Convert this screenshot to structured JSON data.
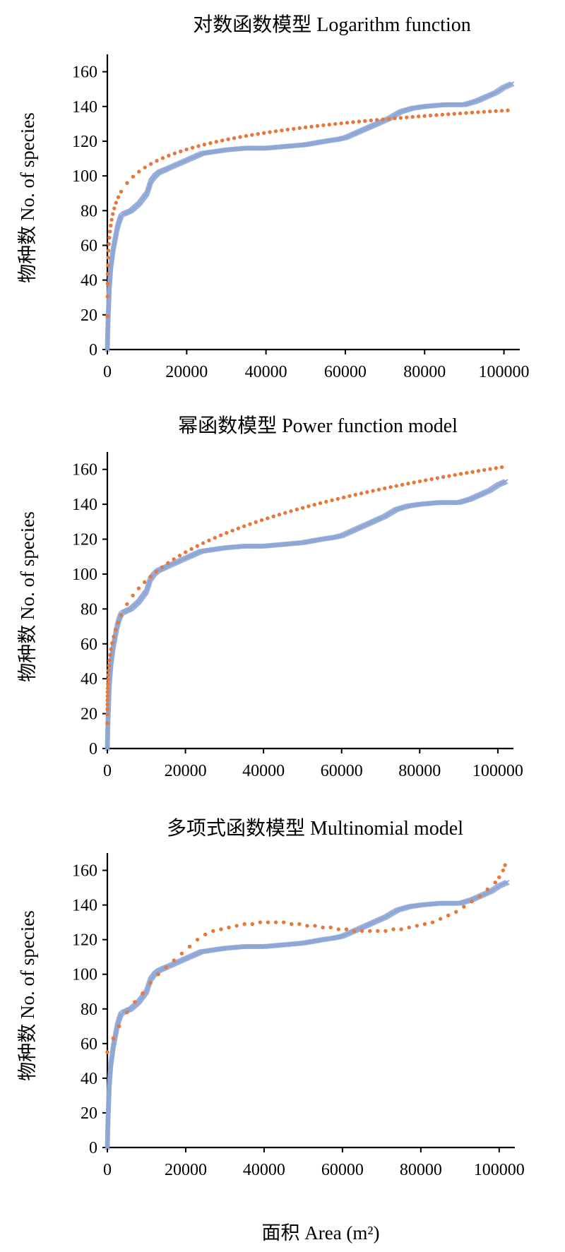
{
  "colors": {
    "observed": "#8fa7d6",
    "fitted": "#e8773a",
    "axis": "#000000"
  },
  "xlabel_shared": "面积 Area (m²)",
  "chart_data": [
    {
      "type": "scatter",
      "title": "对数函数模型 Logarithm function",
      "ylabel": "物种数 No. of species",
      "xlim": [
        0,
        104000
      ],
      "ylim": [
        0,
        170
      ],
      "xticks": [
        0,
        20000,
        40000,
        60000,
        80000,
        100000
      ],
      "yticks": [
        0,
        20,
        40,
        60,
        80,
        100,
        120,
        140,
        160
      ],
      "series": [
        {
          "marker": "x",
          "points": [
            [
              0,
              0
            ],
            [
              50,
              5
            ],
            [
              100,
              10
            ],
            [
              200,
              18
            ],
            [
              300,
              24
            ],
            [
              400,
              30
            ],
            [
              500,
              36
            ],
            [
              700,
              42
            ],
            [
              900,
              48
            ],
            [
              1200,
              53
            ],
            [
              1500,
              58
            ],
            [
              2000,
              64
            ],
            [
              2500,
              70
            ],
            [
              3000,
              74
            ],
            [
              3500,
              77
            ],
            [
              4000,
              78
            ],
            [
              5000,
              79
            ],
            [
              6000,
              80
            ],
            [
              7000,
              82
            ],
            [
              8000,
              84
            ],
            [
              9000,
              87
            ],
            [
              10000,
              90
            ],
            [
              11000,
              97
            ],
            [
              12000,
              100
            ],
            [
              13000,
              102
            ],
            [
              14000,
              103
            ],
            [
              15000,
              104
            ],
            [
              17000,
              106
            ],
            [
              19000,
              108
            ],
            [
              21000,
              110
            ],
            [
              24000,
              113
            ],
            [
              27000,
              114
            ],
            [
              30000,
              115
            ],
            [
              35000,
              116
            ],
            [
              40000,
              116
            ],
            [
              45000,
              117
            ],
            [
              50000,
              118
            ],
            [
              55000,
              120
            ],
            [
              58000,
              121
            ],
            [
              60000,
              122
            ],
            [
              62000,
              124
            ],
            [
              65000,
              127
            ],
            [
              68000,
              130
            ],
            [
              71000,
              133
            ],
            [
              74000,
              137
            ],
            [
              77000,
              139
            ],
            [
              80000,
              140
            ],
            [
              85000,
              141
            ],
            [
              90000,
              141
            ],
            [
              93000,
              143
            ],
            [
              96000,
              146
            ],
            [
              98000,
              148
            ],
            [
              100000,
              151
            ],
            [
              102000,
              153
            ]
          ]
        },
        {
          "marker": "dot",
          "model": "logarithm",
          "a": 13.9,
          "b": -22.4,
          "points": []
        }
      ]
    },
    {
      "type": "scatter",
      "title": "幂函数模型 Power function model",
      "ylabel": "物种数 No. of species",
      "xlim": [
        0,
        104000
      ],
      "ylim": [
        0,
        170
      ],
      "xticks": [
        0,
        20000,
        40000,
        60000,
        80000,
        100000
      ],
      "yticks": [
        0,
        20,
        40,
        60,
        80,
        100,
        120,
        140,
        160
      ],
      "series": [
        {
          "marker": "x",
          "points": [
            [
              0,
              0
            ],
            [
              50,
              5
            ],
            [
              100,
              10
            ],
            [
              200,
              18
            ],
            [
              300,
              24
            ],
            [
              400,
              30
            ],
            [
              500,
              36
            ],
            [
              700,
              42
            ],
            [
              900,
              48
            ],
            [
              1200,
              53
            ],
            [
              1500,
              58
            ],
            [
              2000,
              64
            ],
            [
              2500,
              70
            ],
            [
              3000,
              74
            ],
            [
              3500,
              77
            ],
            [
              4000,
              78
            ],
            [
              5000,
              79
            ],
            [
              6000,
              80
            ],
            [
              7000,
              82
            ],
            [
              8000,
              84
            ],
            [
              9000,
              87
            ],
            [
              10000,
              90
            ],
            [
              11000,
              97
            ],
            [
              12000,
              100
            ],
            [
              13000,
              102
            ],
            [
              14000,
              103
            ],
            [
              15000,
              104
            ],
            [
              17000,
              106
            ],
            [
              19000,
              108
            ],
            [
              21000,
              110
            ],
            [
              24000,
              113
            ],
            [
              27000,
              114
            ],
            [
              30000,
              115
            ],
            [
              35000,
              116
            ],
            [
              40000,
              116
            ],
            [
              45000,
              117
            ],
            [
              50000,
              118
            ],
            [
              55000,
              120
            ],
            [
              58000,
              121
            ],
            [
              60000,
              122
            ],
            [
              62000,
              124
            ],
            [
              65000,
              127
            ],
            [
              68000,
              130
            ],
            [
              71000,
              133
            ],
            [
              74000,
              137
            ],
            [
              77000,
              139
            ],
            [
              80000,
              140
            ],
            [
              85000,
              141
            ],
            [
              90000,
              141
            ],
            [
              93000,
              143
            ],
            [
              96000,
              146
            ],
            [
              98000,
              148
            ],
            [
              100000,
              151
            ],
            [
              102000,
              153
            ]
          ]
        },
        {
          "marker": "dot",
          "model": "power",
          "c": 12.42,
          "z": 0.2225,
          "points": []
        }
      ]
    },
    {
      "type": "scatter",
      "title": "多项式函数模型 Multinomial model",
      "ylabel": "物种数 No. of species",
      "xlim": [
        0,
        104000
      ],
      "ylim": [
        0,
        170
      ],
      "xticks": [
        0,
        20000,
        40000,
        60000,
        80000,
        100000
      ],
      "yticks": [
        0,
        20,
        40,
        60,
        80,
        100,
        120,
        140,
        160
      ],
      "series": [
        {
          "marker": "x",
          "points": [
            [
              0,
              0
            ],
            [
              50,
              5
            ],
            [
              100,
              10
            ],
            [
              200,
              18
            ],
            [
              300,
              24
            ],
            [
              400,
              30
            ],
            [
              500,
              36
            ],
            [
              700,
              42
            ],
            [
              900,
              48
            ],
            [
              1200,
              53
            ],
            [
              1500,
              58
            ],
            [
              2000,
              64
            ],
            [
              2500,
              70
            ],
            [
              3000,
              74
            ],
            [
              3500,
              77
            ],
            [
              4000,
              78
            ],
            [
              5000,
              79
            ],
            [
              6000,
              80
            ],
            [
              7000,
              82
            ],
            [
              8000,
              84
            ],
            [
              9000,
              87
            ],
            [
              10000,
              90
            ],
            [
              11000,
              97
            ],
            [
              12000,
              100
            ],
            [
              13000,
              102
            ],
            [
              14000,
              103
            ],
            [
              15000,
              104
            ],
            [
              17000,
              106
            ],
            [
              19000,
              108
            ],
            [
              21000,
              110
            ],
            [
              24000,
              113
            ],
            [
              27000,
              114
            ],
            [
              30000,
              115
            ],
            [
              35000,
              116
            ],
            [
              40000,
              116
            ],
            [
              45000,
              117
            ],
            [
              50000,
              118
            ],
            [
              55000,
              120
            ],
            [
              58000,
              121
            ],
            [
              60000,
              122
            ],
            [
              62000,
              124
            ],
            [
              65000,
              127
            ],
            [
              68000,
              130
            ],
            [
              71000,
              133
            ],
            [
              74000,
              137
            ],
            [
              77000,
              139
            ],
            [
              80000,
              140
            ],
            [
              85000,
              141
            ],
            [
              90000,
              141
            ],
            [
              93000,
              143
            ],
            [
              96000,
              146
            ],
            [
              98000,
              148
            ],
            [
              100000,
              151
            ],
            [
              102000,
              153
            ]
          ]
        },
        {
          "marker": "dot",
          "model": "polynomial",
          "points": [
            [
              0,
              55
            ],
            [
              1500,
              63
            ],
            [
              3000,
              70
            ],
            [
              5000,
              78
            ],
            [
              7000,
              84
            ],
            [
              9000,
              89
            ],
            [
              11000,
              95
            ],
            [
              13000,
              100
            ],
            [
              15000,
              104
            ],
            [
              17000,
              108
            ],
            [
              19000,
              112
            ],
            [
              21000,
              116
            ],
            [
              23000,
              120
            ],
            [
              25000,
              123
            ],
            [
              27000,
              125
            ],
            [
              29000,
              126
            ],
            [
              31000,
              127
            ],
            [
              33000,
              128
            ],
            [
              35000,
              129
            ],
            [
              37000,
              129
            ],
            [
              39000,
              130
            ],
            [
              41000,
              130
            ],
            [
              43000,
              130
            ],
            [
              45000,
              130
            ],
            [
              47000,
              129
            ],
            [
              49000,
              129
            ],
            [
              51000,
              128
            ],
            [
              53000,
              128
            ],
            [
              55000,
              127
            ],
            [
              57000,
              127
            ],
            [
              59000,
              126
            ],
            [
              61000,
              126
            ],
            [
              63000,
              125
            ],
            [
              65000,
              125
            ],
            [
              67000,
              125
            ],
            [
              69000,
              125
            ],
            [
              71000,
              125
            ],
            [
              73000,
              126
            ],
            [
              75000,
              126
            ],
            [
              77000,
              127
            ],
            [
              79000,
              128
            ],
            [
              81000,
              129
            ],
            [
              83000,
              130
            ],
            [
              85000,
              132
            ],
            [
              87000,
              134
            ],
            [
              89000,
              136
            ],
            [
              91000,
              139
            ],
            [
              93000,
              142
            ],
            [
              95000,
              145
            ],
            [
              97000,
              149
            ],
            [
              99000,
              153
            ],
            [
              100000,
              156
            ],
            [
              101000,
              160
            ],
            [
              101500,
              163
            ]
          ]
        }
      ]
    }
  ]
}
